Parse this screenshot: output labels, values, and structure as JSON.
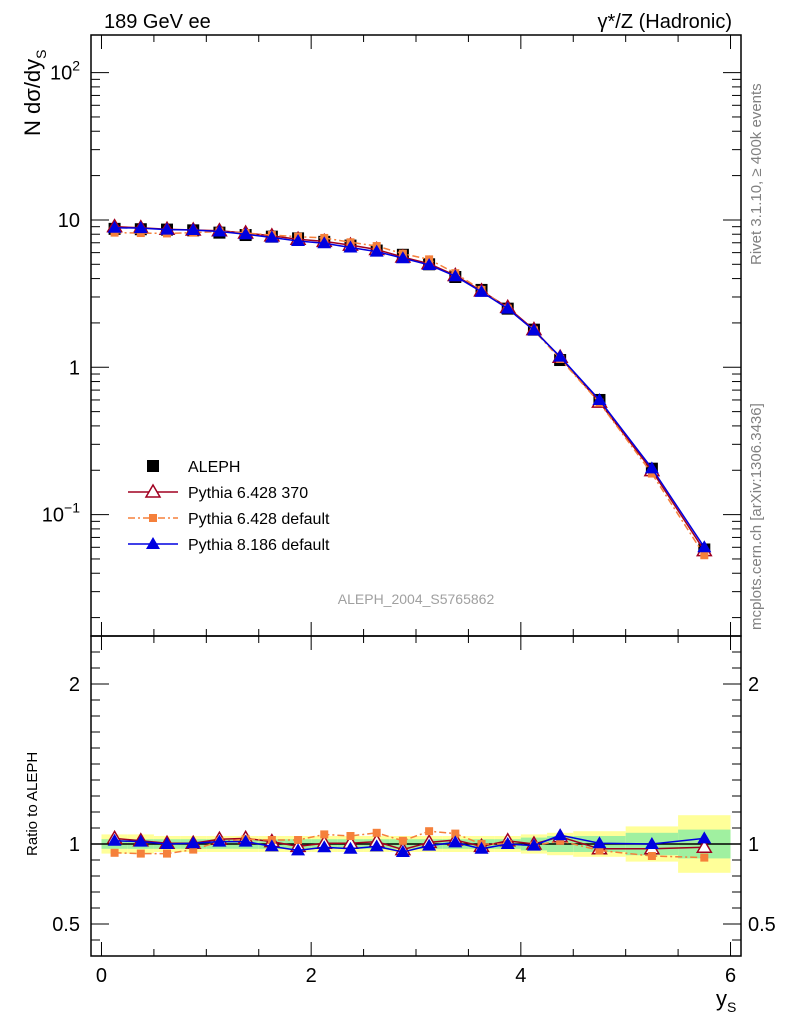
{
  "chart_data": {
    "type": "line",
    "title_left": "189 GeV ee",
    "title_right": "γ*/Z (Hadronic)",
    "ylabel": "N dσ/dy",
    "ylabel_sub": "S",
    "xlabel": "y",
    "xlabel_sub": "S",
    "ratio_ylabel": "Ratio to ALEPH",
    "watermark": "ALEPH_2004_S5765862",
    "side_text_top": "Rivet 3.1.10, ≥ 400k events",
    "side_text_bottom": "mcplots.cern.ch [arXiv:1306.3436]",
    "xlim": [
      -0.1,
      6.1
    ],
    "ylim_main": [
      0.015,
      180
    ],
    "ylim_ratio": [
      0.3,
      2.3
    ],
    "x_ticks": [
      {
        "value": 0,
        "label": "0"
      },
      {
        "value": 2,
        "label": "2"
      },
      {
        "value": 4,
        "label": "4"
      },
      {
        "value": 6,
        "label": "6"
      }
    ],
    "y_ticks_main": [
      {
        "value": 100,
        "label": "10",
        "sup": "2"
      },
      {
        "value": 10,
        "label": "10",
        "sup": ""
      },
      {
        "value": 1,
        "label": "1",
        "sup": ""
      },
      {
        "value": 0.1,
        "label": "10",
        "sup": "−1"
      }
    ],
    "y_ticks_ratio": [
      {
        "value": 2,
        "label": "2"
      },
      {
        "value": 1,
        "label": "1"
      },
      {
        "value": 0.5,
        "label": "0.5"
      }
    ],
    "x": [
      0.125,
      0.375,
      0.625,
      0.875,
      1.125,
      1.375,
      1.625,
      1.875,
      2.125,
      2.375,
      2.625,
      2.875,
      3.125,
      3.375,
      3.625,
      3.875,
      4.125,
      4.375,
      4.75,
      5.25,
      5.75
    ],
    "bins": [
      [
        0,
        0.25
      ],
      [
        0.25,
        0.5
      ],
      [
        0.5,
        0.75
      ],
      [
        0.75,
        1.0
      ],
      [
        1.0,
        1.25
      ],
      [
        1.25,
        1.5
      ],
      [
        1.5,
        1.75
      ],
      [
        1.75,
        2.0
      ],
      [
        2.0,
        2.25
      ],
      [
        2.25,
        2.5
      ],
      [
        2.5,
        2.75
      ],
      [
        2.75,
        3.0
      ],
      [
        3.0,
        3.25
      ],
      [
        3.25,
        3.5
      ],
      [
        3.5,
        3.75
      ],
      [
        3.75,
        4.0
      ],
      [
        4.0,
        4.25
      ],
      [
        4.25,
        4.5
      ],
      [
        4.5,
        5.0
      ],
      [
        5.0,
        5.5
      ],
      [
        5.5,
        6.0
      ]
    ],
    "band_stat": [
      0.03,
      0.03,
      0.03,
      0.03,
      0.03,
      0.03,
      0.03,
      0.03,
      0.03,
      0.03,
      0.03,
      0.03,
      0.03,
      0.03,
      0.03,
      0.03,
      0.04,
      0.05,
      0.05,
      0.07,
      0.09
    ],
    "band_total": [
      0.06,
      0.06,
      0.05,
      0.05,
      0.05,
      0.05,
      0.05,
      0.05,
      0.05,
      0.05,
      0.05,
      0.05,
      0.05,
      0.05,
      0.05,
      0.05,
      0.06,
      0.07,
      0.08,
      0.11,
      0.18
    ],
    "series": [
      {
        "name": "ALEPH",
        "marker": "square",
        "color": "#000000",
        "line": "none",
        "values": [
          8.7,
          8.65,
          8.6,
          8.5,
          8.2,
          7.9,
          7.7,
          7.5,
          7.1,
          6.7,
          6.2,
          5.8,
          5.0,
          4.1,
          3.35,
          2.5,
          1.8,
          1.12,
          0.6,
          0.205,
          0.058
        ]
      },
      {
        "name": "Pythia 6.428 370",
        "marker": "triangle-open",
        "color": "#a00020",
        "line": "solid",
        "values": [
          9.0,
          8.85,
          8.65,
          8.55,
          8.45,
          8.15,
          7.8,
          7.4,
          7.15,
          6.75,
          6.3,
          5.6,
          5.05,
          4.2,
          3.3,
          2.55,
          1.8,
          1.17,
          0.58,
          0.199,
          0.057
        ]
      },
      {
        "name": "Pythia 6.428 default",
        "marker": "square-small",
        "color": "#f5803b",
        "line": "dashdot",
        "values": [
          8.2,
          8.15,
          8.1,
          8.2,
          8.35,
          8.15,
          7.9,
          7.7,
          7.55,
          7.05,
          6.65,
          5.9,
          5.4,
          4.35,
          3.35,
          2.5,
          1.78,
          1.14,
          0.575,
          0.19,
          0.053
        ]
      },
      {
        "name": "Pythia 8.186 default",
        "marker": "triangle-filled",
        "color": "#0000e0",
        "line": "solid",
        "values": [
          8.85,
          8.8,
          8.6,
          8.55,
          8.35,
          8.0,
          7.6,
          7.2,
          6.95,
          6.5,
          6.1,
          5.5,
          4.95,
          4.15,
          3.25,
          2.5,
          1.78,
          1.18,
          0.6,
          0.206,
          0.06
        ]
      }
    ],
    "ratios": [
      [
        1.035,
        1.02,
        1.005,
        1.005,
        1.03,
        1.035,
        1.015,
        0.985,
        1.005,
        1.005,
        1.015,
        0.965,
        1.01,
        1.025,
        0.985,
        1.02,
        1.0,
        1.045,
        0.97,
        0.97,
        0.98
      ],
      [
        0.945,
        0.94,
        0.94,
        0.965,
        1.015,
        1.03,
        1.025,
        1.025,
        1.06,
        1.05,
        1.07,
        1.02,
        1.08,
        1.065,
        1.0,
        1.0,
        0.99,
        1.02,
        0.96,
        0.925,
        0.915
      ],
      [
        1.02,
        1.015,
        1.0,
        1.005,
        1.015,
        1.015,
        0.985,
        0.96,
        0.98,
        0.97,
        0.985,
        0.95,
        0.99,
        1.01,
        0.97,
        1.0,
        0.99,
        1.055,
        1.005,
        1.0,
        1.035
      ]
    ]
  }
}
